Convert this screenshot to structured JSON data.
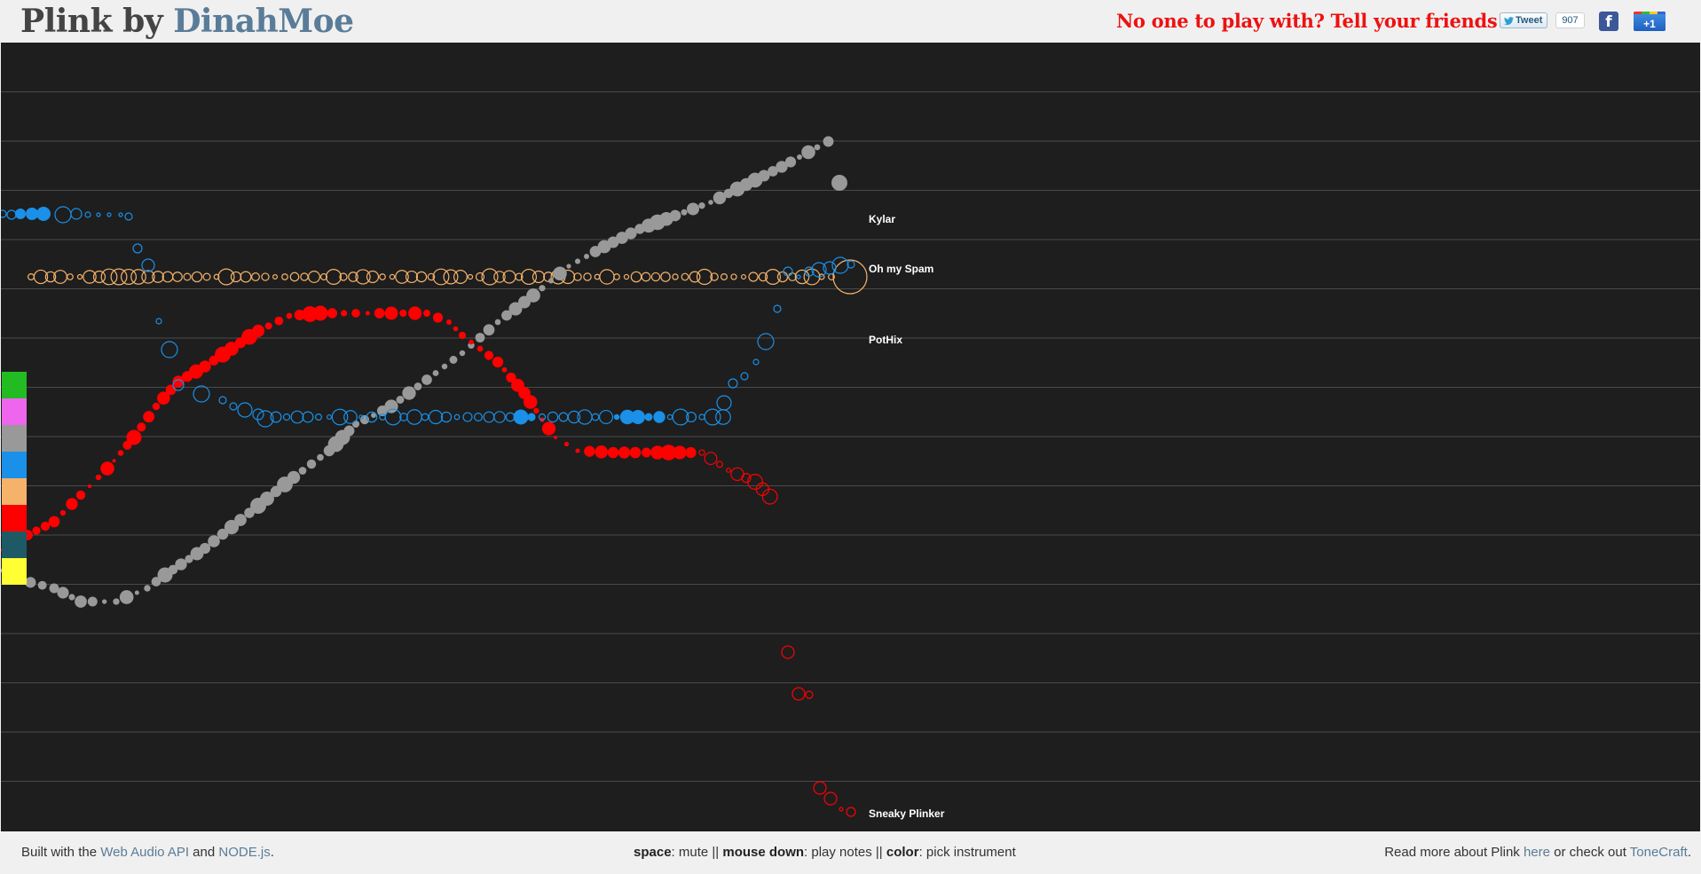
{
  "header": {
    "logo_prefix": "Plink by ",
    "logo_brand": "DinahMoe",
    "tagline": "No one to play with? Tell your friends!",
    "tweet_label": "Tweet",
    "tweet_count": "907",
    "facebook_label": "f",
    "gplus_label": "+1"
  },
  "palette": {
    "colors": [
      "#22bb22",
      "#ee66ee",
      "#999999",
      "#1a90e8",
      "#f5b26b",
      "#ff0000",
      "#1d5a66",
      "#ffff33"
    ]
  },
  "players": [
    {
      "name": "Kylar",
      "color": "#999999",
      "style": "filled"
    },
    {
      "name": "Oh my Spam",
      "color": "#1a90e8",
      "style": "mixed"
    },
    {
      "name": "PotHix",
      "color": "#f5b26b",
      "style": "outline"
    },
    {
      "name": "Sneaky Plinker",
      "color": "#ff0000",
      "style": "mixed"
    }
  ],
  "footer": {
    "left_prefix": "Built with the ",
    "web_audio_link": "Web Audio API",
    "and_text": " and ",
    "node_link": "NODE.js",
    "period": ".",
    "space_key": "space",
    "mute_text": ": mute || ",
    "mouse_key": "mouse down",
    "play_text": ": play notes || ",
    "color_key": "color",
    "pick_text": ": pick instrument",
    "right_prefix": "Read more about Plink ",
    "here_link": "here",
    "or_text": " or check out ",
    "tonecraft_link": "ToneCraft",
    "end_period": "."
  }
}
